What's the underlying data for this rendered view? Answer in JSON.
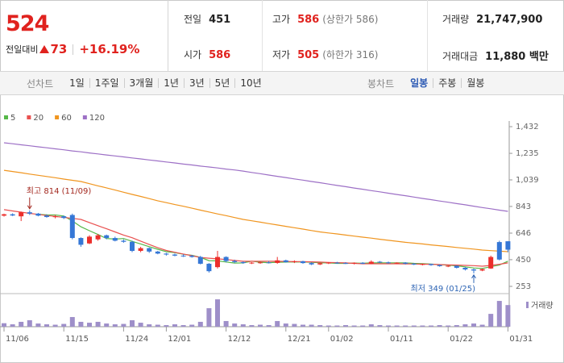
{
  "quote": {
    "price": "524",
    "change_label": "전일대비",
    "change": "73",
    "change_pct": "+16.19%"
  },
  "summary": [
    {
      "label": "전일",
      "value": "451"
    },
    {
      "label": "고가",
      "value": "586",
      "note": "(상한가 586)"
    },
    {
      "label": "거래량",
      "value": "21,747,900"
    },
    {
      "label": "시가",
      "value": "586"
    },
    {
      "label": "저가",
      "value": "505",
      "note": "(하한가 316)"
    },
    {
      "label": "거래대금",
      "value": "11,880 백만"
    }
  ],
  "toolbar": {
    "line_chart": "선차트",
    "periods": [
      "1일",
      "1주일",
      "3개월",
      "1년",
      "3년",
      "5년",
      "10년"
    ],
    "candle_chart": "봉차트",
    "candle_periods": [
      "일봉",
      "주봉",
      "월봉"
    ],
    "active_candle_period": 0
  },
  "chart_data": {
    "type": "candlestick",
    "categories": [
      "11/06",
      null,
      null,
      null,
      null,
      null,
      null,
      "11/15",
      null,
      null,
      null,
      null,
      null,
      null,
      "11/24",
      null,
      null,
      null,
      null,
      "12/01",
      null,
      null,
      null,
      null,
      null,
      null,
      "12/12",
      null,
      null,
      null,
      null,
      null,
      null,
      "12/21",
      null,
      null,
      null,
      null,
      "01/02",
      null,
      null,
      null,
      null,
      null,
      null,
      "01/11",
      null,
      null,
      null,
      null,
      null,
      null,
      "01/22",
      null,
      null,
      null,
      null,
      null,
      null,
      "01/31"
    ],
    "open": [
      775,
      785,
      770,
      800,
      790,
      775,
      765,
      770,
      780,
      610,
      570,
      600,
      630,
      610,
      590,
      582,
      515,
      535,
      510,
      495,
      488,
      480,
      478,
      470,
      420,
      395,
      470,
      440,
      432,
      425,
      428,
      430,
      426,
      445,
      432,
      438,
      425,
      415,
      424,
      428,
      425,
      422,
      427,
      420,
      435,
      430,
      424,
      428,
      420,
      415,
      418,
      410,
      402,
      405,
      390,
      378,
      370,
      385,
      580,
      586
    ],
    "high": [
      790,
      792,
      805,
      814,
      795,
      785,
      780,
      775,
      790,
      615,
      630,
      640,
      635,
      620,
      600,
      590,
      545,
      540,
      515,
      500,
      495,
      490,
      485,
      478,
      425,
      515,
      475,
      450,
      438,
      432,
      435,
      440,
      470,
      450,
      445,
      442,
      430,
      428,
      432,
      434,
      432,
      430,
      432,
      445,
      440,
      436,
      430,
      432,
      426,
      422,
      420,
      415,
      410,
      408,
      395,
      385,
      385,
      480,
      590,
      586
    ],
    "low": [
      768,
      772,
      735,
      780,
      770,
      760,
      755,
      750,
      600,
      545,
      565,
      590,
      600,
      585,
      575,
      505,
      505,
      500,
      490,
      480,
      475,
      470,
      465,
      415,
      355,
      385,
      430,
      425,
      420,
      418,
      420,
      422,
      420,
      428,
      425,
      420,
      410,
      410,
      418,
      420,
      418,
      415,
      418,
      418,
      425,
      420,
      418,
      415,
      410,
      408,
      405,
      398,
      395,
      385,
      370,
      349,
      365,
      382,
      445,
      505
    ],
    "close": [
      785,
      776,
      800,
      790,
      775,
      765,
      770,
      758,
      610,
      560,
      620,
      630,
      610,
      590,
      582,
      515,
      535,
      510,
      495,
      488,
      480,
      478,
      470,
      420,
      365,
      470,
      440,
      432,
      425,
      428,
      430,
      426,
      445,
      432,
      438,
      425,
      415,
      424,
      428,
      425,
      422,
      427,
      420,
      435,
      430,
      424,
      428,
      420,
      415,
      418,
      410,
      402,
      405,
      390,
      378,
      370,
      380,
      470,
      451,
      524
    ],
    "volume": [
      3500000,
      2400000,
      4900000,
      6500000,
      3200000,
      2400000,
      2000000,
      2800000,
      9700000,
      4900000,
      4000000,
      4900000,
      3200000,
      2400000,
      2800000,
      6500000,
      4000000,
      2400000,
      2000000,
      1600000,
      2400000,
      1600000,
      2000000,
      4900000,
      18600000,
      27500000,
      5700000,
      3200000,
      2400000,
      1600000,
      2000000,
      1600000,
      5700000,
      3200000,
      2800000,
      2000000,
      2000000,
      1600000,
      1200000,
      1200000,
      1600000,
      1200000,
      1200000,
      2400000,
      1600000,
      1200000,
      1200000,
      1200000,
      1200000,
      1200000,
      1200000,
      1600000,
      1200000,
      1600000,
      2400000,
      3200000,
      2000000,
      12900000,
      25900000,
      21747900
    ],
    "series": [
      {
        "name": "5",
        "color": "#56b848",
        "values": [
          null,
          null,
          null,
          null,
          785,
          781,
          780,
          772,
          736,
          693,
          664,
          636,
          606,
          602,
          606,
          585,
          566,
          546,
          527,
          509,
          502,
          490,
          482,
          467,
          443,
          441,
          433,
          425,
          426,
          439,
          431,
          428,
          431,
          432,
          434,
          433,
          431,
          427,
          426,
          423,
          423,
          425,
          424,
          426,
          427,
          427,
          427,
          427,
          423,
          421,
          418,
          413,
          410,
          405,
          397,
          389,
          385,
          398,
          410,
          439
        ]
      },
      {
        "name": "20",
        "color": "#e9504f",
        "values": [
          819,
          810,
          801,
          792,
          784,
          776,
          769,
          762,
          755,
          747,
          724,
          701,
          678,
          655,
          632,
          612,
          587,
          562,
          538,
          518,
          505,
          492,
          479,
          466,
          461,
          456,
          451,
          444,
          438,
          438,
          438,
          438,
          438,
          437,
          436,
          435,
          434,
          432,
          430,
          428,
          426,
          423,
          420,
          420,
          420,
          420,
          420,
          419,
          418,
          417,
          416,
          414,
          412,
          410,
          408,
          406,
          402,
          408,
          416,
          426
        ]
      },
      {
        "name": "60",
        "color": "#f0951f",
        "values": [
          1110,
          1101,
          1092,
          1082,
          1073,
          1064,
          1055,
          1045,
          1036,
          1027,
          1011,
          995,
          980,
          964,
          948,
          932,
          917,
          901,
          885,
          871,
          857,
          844,
          830,
          816,
          802,
          788,
          775,
          761,
          747,
          737,
          727,
          716,
          706,
          696,
          686,
          676,
          665,
          655,
          647,
          640,
          632,
          624,
          616,
          609,
          601,
          593,
          586,
          578,
          572,
          566,
          559,
          553,
          547,
          540,
          534,
          528,
          521,
          517,
          513,
          509
        ]
      },
      {
        "name": "120",
        "color": "#9d70c6",
        "values": [
          1313,
          1306,
          1298,
          1291,
          1283,
          1276,
          1268,
          1261,
          1253,
          1246,
          1238,
          1231,
          1223,
          1216,
          1209,
          1201,
          1194,
          1186,
          1179,
          1171,
          1164,
          1156,
          1149,
          1141,
          1134,
          1127,
          1119,
          1112,
          1104,
          1094,
          1085,
          1075,
          1065,
          1056,
          1046,
          1037,
          1027,
          1018,
          1008,
          998,
          989,
          979,
          970,
          960,
          951,
          941,
          931,
          922,
          912,
          902,
          893,
          883,
          874,
          864,
          855,
          845,
          835,
          826,
          816,
          807
        ]
      }
    ],
    "ylim": [
      253,
      1432
    ],
    "yticks": [
      253,
      450,
      646,
      843,
      {
        "value": 1039,
        "label": "1,039"
      },
      {
        "value": 1235,
        "label": "1,235"
      },
      {
        "value": 1432,
        "label": "1,432"
      }
    ],
    "vlim": [
      0,
      30000000
    ],
    "volume_label": "거래량",
    "volume_color": "#9e8fc9",
    "up_color": "#ec2f2b",
    "down_color": "#3577d6",
    "annotations": [
      {
        "text": "최고 814 (11/09)"
      },
      {
        "text": "최저 349 (01/25)"
      }
    ]
  }
}
